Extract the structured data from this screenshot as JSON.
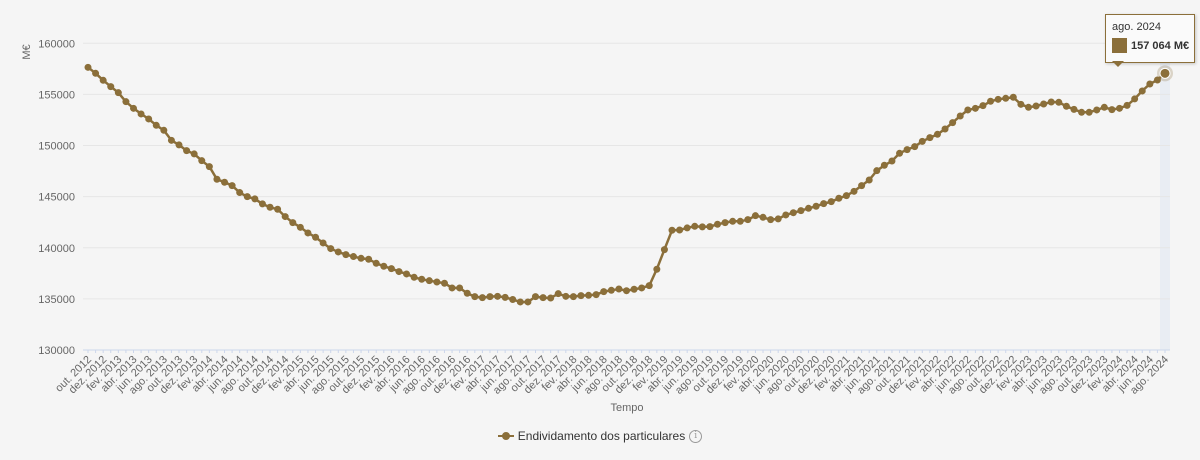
{
  "chart_data": {
    "type": "line",
    "xlabel": "Tempo",
    "ylabel": "M€",
    "ylim": [
      130000,
      160000
    ],
    "yticks": [
      "130000",
      "135000",
      "140000",
      "145000",
      "150000",
      "155000",
      "160000"
    ],
    "grid": true,
    "legend_position": "bottom",
    "color": "#8b6f3a",
    "categories": [
      "out. 2012",
      "nov. 2012",
      "dez. 2012",
      "jan. 2013",
      "fev. 2013",
      "mar. 2013",
      "abr. 2013",
      "mai. 2013",
      "jun. 2013",
      "jul. 2013",
      "ago. 2013",
      "set. 2013",
      "out. 2013",
      "nov. 2013",
      "dez. 2013",
      "jan. 2014",
      "fev. 2014",
      "mar. 2014",
      "abr. 2014",
      "mai. 2014",
      "jun. 2014",
      "jul. 2014",
      "ago. 2014",
      "set. 2014",
      "out. 2014",
      "nov. 2014",
      "dez. 2014",
      "jan. 2015",
      "fev. 2015",
      "mar. 2015",
      "abr. 2015",
      "mai. 2015",
      "jun. 2015",
      "jul. 2015",
      "ago. 2015",
      "set. 2015",
      "out. 2015",
      "nov. 2015",
      "dez. 2015",
      "jan. 2016",
      "fev. 2016",
      "mar. 2016",
      "abr. 2016",
      "mai. 2016",
      "jun. 2016",
      "jul. 2016",
      "ago. 2016",
      "set. 2016",
      "out. 2016",
      "nov. 2016",
      "dez. 2016",
      "jan. 2017",
      "fev. 2017",
      "mar. 2017",
      "abr. 2017",
      "mai. 2017",
      "jun. 2017",
      "jul. 2017",
      "ago. 2017",
      "set. 2017",
      "out. 2017",
      "nov. 2017",
      "dez. 2017",
      "jan. 2018",
      "fev. 2018",
      "mar. 2018",
      "abr. 2018",
      "mai. 2018",
      "jun. 2018",
      "jul. 2018",
      "ago. 2018",
      "set. 2018",
      "out. 2018",
      "nov. 2018",
      "dez. 2018",
      "jan. 2019",
      "fev. 2019",
      "mar. 2019",
      "abr. 2019",
      "mai. 2019",
      "jun. 2019",
      "jul. 2019",
      "ago. 2019",
      "set. 2019",
      "out. 2019",
      "nov. 2019",
      "dez. 2019",
      "jan. 2020",
      "fev. 2020",
      "mar. 2020",
      "abr. 2020",
      "mai. 2020",
      "jun. 2020",
      "jul. 2020",
      "ago. 2020",
      "set. 2020",
      "out. 2020",
      "nov. 2020",
      "dez. 2020",
      "jan. 2021",
      "fev. 2021",
      "mar. 2021",
      "abr. 2021",
      "mai. 2021",
      "jun. 2021",
      "jul. 2021",
      "ago. 2021",
      "set. 2021",
      "out. 2021",
      "nov. 2021",
      "dez. 2021",
      "jan. 2022",
      "fev. 2022",
      "mar. 2022",
      "abr. 2022",
      "mai. 2022",
      "jun. 2022",
      "jul. 2022",
      "ago. 2022",
      "set. 2022",
      "out. 2022",
      "nov. 2022",
      "dez. 2022",
      "jan. 2023",
      "fev. 2023",
      "mar. 2023",
      "abr. 2023",
      "mai. 2023",
      "jun. 2023",
      "jul. 2023",
      "ago. 2023",
      "set. 2023",
      "out. 2023",
      "nov. 2023",
      "dez. 2023",
      "jan. 2024",
      "fev. 2024",
      "mar. 2024",
      "abr. 2024",
      "mai. 2024",
      "jun. 2024",
      "jul. 2024",
      "ago. 2024"
    ],
    "series": [
      {
        "name": "Endividamento dos particulares",
        "values": [
          157650,
          157066,
          156380,
          155760,
          155170,
          154290,
          153640,
          153090,
          152600,
          151980,
          151490,
          150510,
          150060,
          149500,
          149180,
          148520,
          147940,
          146700,
          146410,
          146080,
          145400,
          145000,
          144780,
          144290,
          143960,
          143770,
          143050,
          142460,
          142000,
          141450,
          141030,
          140470,
          139920,
          139590,
          139330,
          139140,
          138970,
          138880,
          138480,
          138190,
          137960,
          137670,
          137440,
          137110,
          136920,
          136780,
          136650,
          136530,
          136070,
          136070,
          135550,
          135220,
          135120,
          135220,
          135250,
          135150,
          134940,
          134700,
          134700,
          135220,
          135120,
          135090,
          135510,
          135250,
          135220,
          135320,
          135350,
          135420,
          135710,
          135840,
          135970,
          135800,
          135940,
          136070,
          136300,
          137900,
          139820,
          141710,
          141740,
          141940,
          142100,
          142040,
          142070,
          142300,
          142460,
          142590,
          142590,
          142750,
          143140,
          142980,
          142750,
          142820,
          143210,
          143430,
          143630,
          143860,
          144060,
          144320,
          144510,
          144840,
          145100,
          145520,
          146080,
          146630,
          147540,
          148070,
          148490,
          149240,
          149600,
          149890,
          150410,
          150770,
          151100,
          151620,
          152240,
          152890,
          153480,
          153640,
          153900,
          154330,
          154520,
          154620,
          154720,
          154030,
          153740,
          153870,
          154060,
          154260,
          154230,
          153840,
          153540,
          153250,
          153250,
          153480,
          153740,
          153510,
          153640,
          153930,
          154560,
          155340,
          156020,
          156410,
          157064
        ]
      }
    ],
    "tooltip": {
      "date": "ago. 2024",
      "value": "157 064 M€"
    }
  },
  "legend": {
    "label": "Endividamento dos particulares",
    "info_icon": "info-icon",
    "info_glyph": "i"
  }
}
